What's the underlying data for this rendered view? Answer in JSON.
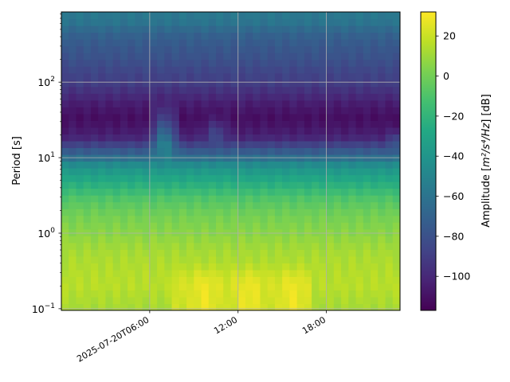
{
  "chart_data": {
    "type": "heatmap",
    "title": "",
    "xlabel": "",
    "ylabel": "Period [s]",
    "x_axis": {
      "type": "time",
      "range": [
        "2025-07-20T00:00",
        "2025-07-20T23:00"
      ],
      "ticks": [
        {
          "time": "2025-07-20T06:00",
          "label": "2025-07-20T06:00"
        },
        {
          "time": "2025-07-20T12:00",
          "label": "12:00"
        },
        {
          "time": "2025-07-20T18:00",
          "label": "18:00"
        }
      ]
    },
    "y_axis": {
      "scale": "log",
      "range": [
        0.095,
        850
      ],
      "ticks": [
        {
          "value": 0.1,
          "label": "10",
          "exp": "−1"
        },
        {
          "value": 1,
          "label": "10",
          "exp": "0"
        },
        {
          "value": 10,
          "label": "10",
          "exp": "1"
        },
        {
          "value": 100,
          "label": "10",
          "exp": "2"
        }
      ]
    },
    "grid": true,
    "colormap": "viridis",
    "colorbar": {
      "label_prefix": "Amplitude [",
      "label_unit": "m²/s⁴/Hz",
      "label_suffix": "] [dB]",
      "range": [
        -117,
        32
      ],
      "ticks": [
        20,
        0,
        -20,
        -40,
        -60,
        -80,
        -100
      ],
      "tick_labels": [
        "20",
        "0",
        "−20",
        "−40",
        "−60",
        "−80",
        "−100"
      ]
    },
    "amplitude_profile": {
      "periods_s": [
        0.1,
        0.15,
        0.2,
        0.3,
        0.5,
        0.7,
        1.0,
        1.5,
        2.0,
        3.0,
        4.0,
        6.0,
        8.0,
        10.0,
        13.0,
        18.0,
        25.0,
        35.0,
        50.0,
        70.0,
        100.0,
        150.0,
        200.0,
        300.0,
        450.0,
        600.0,
        850.0
      ],
      "amplitude_db": [
        12,
        14,
        16,
        15,
        13,
        10,
        6,
        2,
        -2,
        -10,
        -20,
        -33,
        -45,
        -62,
        -78,
        -100,
        -108,
        -111,
        -106,
        -98,
        -90,
        -85,
        -80,
        -76,
        -70,
        -60,
        -57
      ]
    },
    "time_events": {
      "daytime_short_period_excess": {
        "start": "2025-07-20T07:30",
        "end": "2025-07-20T17:00",
        "peak_db": 28,
        "period_range_s": [
          0.1,
          0.4
        ]
      },
      "long_period_broadband_bursts": [
        {
          "center": "2025-07-20T07:00",
          "width_h": 1.2,
          "peak_db": -45,
          "period_range_s": [
            4,
            60
          ]
        },
        {
          "center": "2025-07-20T10:30",
          "width_h": 1.0,
          "peak_db": -80,
          "period_range_s": [
            10,
            40
          ]
        },
        {
          "center": "2025-07-20T22:40",
          "width_h": 0.6,
          "peak_db": -75,
          "period_range_s": [
            10,
            25
          ]
        }
      ]
    }
  }
}
